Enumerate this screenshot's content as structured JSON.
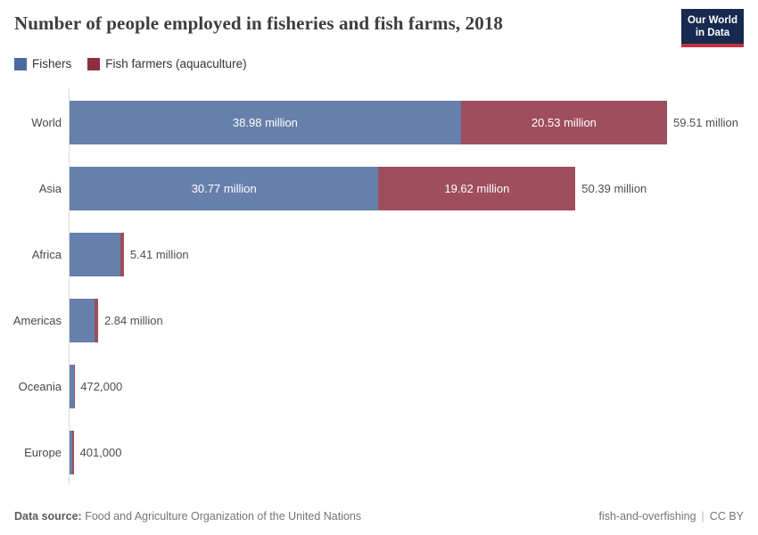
{
  "header": {
    "title": "Number of people employed in fisheries and fish farms, 2018",
    "logo_line1": "Our World",
    "logo_line2": "in Data",
    "logo_bg": "#16294e",
    "logo_accent": "#c5303e"
  },
  "legend": [
    {
      "label": "Fishers",
      "color": "#4c6a9d"
    },
    {
      "label": "Fish farmers (aquaculture)",
      "color": "#8d2f40"
    }
  ],
  "chart_data": {
    "type": "bar",
    "orientation": "horizontal",
    "stacked": true,
    "title": "Number of people employed in fisheries and fish farms, 2018",
    "categories": [
      "World",
      "Asia",
      "Africa",
      "Americas",
      "Oceania",
      "Europe"
    ],
    "series": [
      {
        "name": "Fishers",
        "color": "#4c6a9d",
        "bar_color": "#6780ab",
        "values_million": [
          38.98,
          30.77,
          5.07,
          2.45,
          0.46,
          0.3
        ]
      },
      {
        "name": "Fish farmers (aquaculture)",
        "color": "#8d2f40",
        "bar_color": "#9e4e5c",
        "values_million": [
          20.53,
          19.62,
          0.34,
          0.39,
          0.012,
          0.1
        ]
      }
    ],
    "totals_million": [
      59.51,
      50.39,
      5.41,
      2.84,
      0.472,
      0.401
    ],
    "segment_labels": [
      [
        "38.98 million",
        "20.53 million"
      ],
      [
        "30.77 million",
        "19.62 million"
      ],
      [
        "",
        ""
      ],
      [
        "",
        ""
      ],
      [
        "",
        ""
      ],
      [
        "",
        ""
      ]
    ],
    "total_labels": [
      "59.51 million",
      "50.39 million",
      "5.41 million",
      "2.84 million",
      "472,000",
      "401,000"
    ],
    "xlim_million": [
      0,
      59.51
    ],
    "grid": false,
    "legend_position": "top-left"
  },
  "footer": {
    "source_label": "Data source:",
    "source": "Food and Agriculture Organization of the United Nations",
    "note": "fish-and-overfishing",
    "separator": "|",
    "license": "CC BY"
  }
}
